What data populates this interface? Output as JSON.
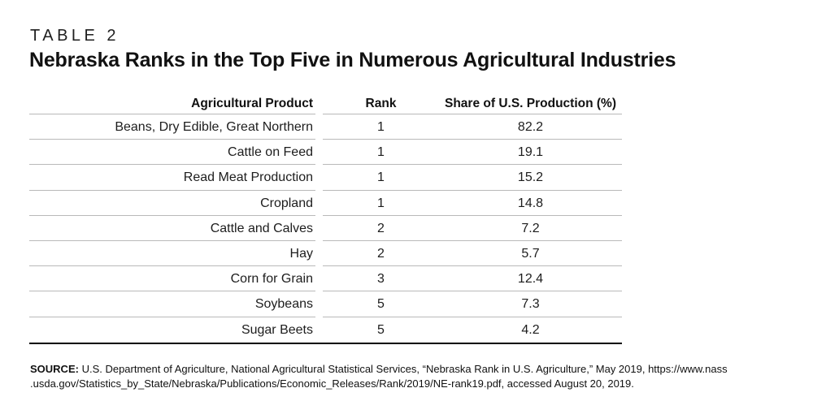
{
  "table_label": "TABLE 2",
  "title": "Nebraska Ranks in the Top Five in Numerous Agricultural Industries",
  "table": {
    "columns": {
      "product": "Agricultural Product",
      "rank": "Rank",
      "share": "Share of U.S. Production (%)"
    },
    "rows": [
      {
        "product": "Beans, Dry Edible, Great Northern",
        "rank": "1",
        "share": "82.2"
      },
      {
        "product": "Cattle on Feed",
        "rank": "1",
        "share": "19.1"
      },
      {
        "product": "Read Meat Production",
        "rank": "1",
        "share": "15.2"
      },
      {
        "product": "Cropland",
        "rank": "1",
        "share": "14.8"
      },
      {
        "product": "Cattle and Calves",
        "rank": "2",
        "share": "7.2"
      },
      {
        "product": "Hay",
        "rank": "2",
        "share": "5.7"
      },
      {
        "product": "Corn for Grain",
        "rank": "3",
        "share": "12.4"
      },
      {
        "product": "Soybeans",
        "rank": "5",
        "share": "7.3"
      },
      {
        "product": "Sugar Beets",
        "rank": "5",
        "share": "4.2"
      }
    ]
  },
  "source": {
    "label": "SOURCE:",
    "lines": [
      " U.S. Department of Agriculture, National Agricultural Statistical Services, “Nebraska Rank in U.S. Agriculture,” May 2019, https://www.nass",
      ".usda.gov/Statistics_by_State/Nebraska/Publications/Economic_Releases/Rank/2019/NE-rank19.pdf, accessed August 20, 2019."
    ]
  },
  "colors": {
    "rule": "#b9b9b9",
    "heavy_rule": "#000000",
    "text": "#1a1a1a"
  }
}
